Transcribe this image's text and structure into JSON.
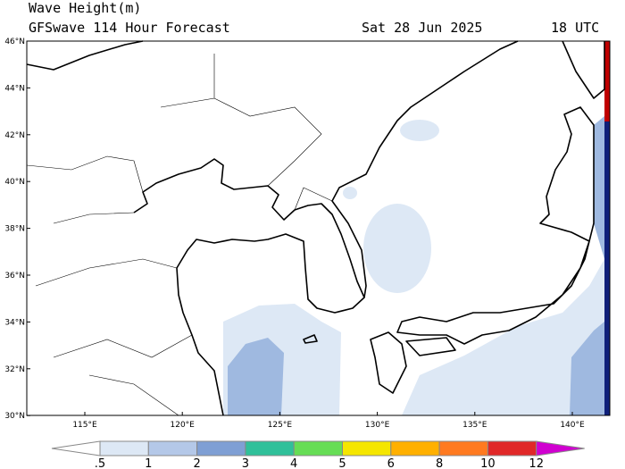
{
  "header": {
    "title": "Wave Height(m)",
    "subtitle": "GFSwave 114 Hour Forecast",
    "date": "Sat 28 Jun 2025",
    "time": "18 UTC"
  },
  "lat_labels": [
    "46°N",
    "44°N",
    "42°N",
    "40°N",
    "38°N",
    "36°N",
    "34°N",
    "32°N",
    "30°N"
  ],
  "lon_labels": [
    "115°E",
    "120°E",
    "125°E",
    "130°E",
    "135°E",
    "140°E"
  ],
  "colorbar_labels": [
    ".5",
    "1",
    "2",
    "3",
    "4",
    "5",
    "6",
    "8",
    "10",
    "12"
  ]
}
